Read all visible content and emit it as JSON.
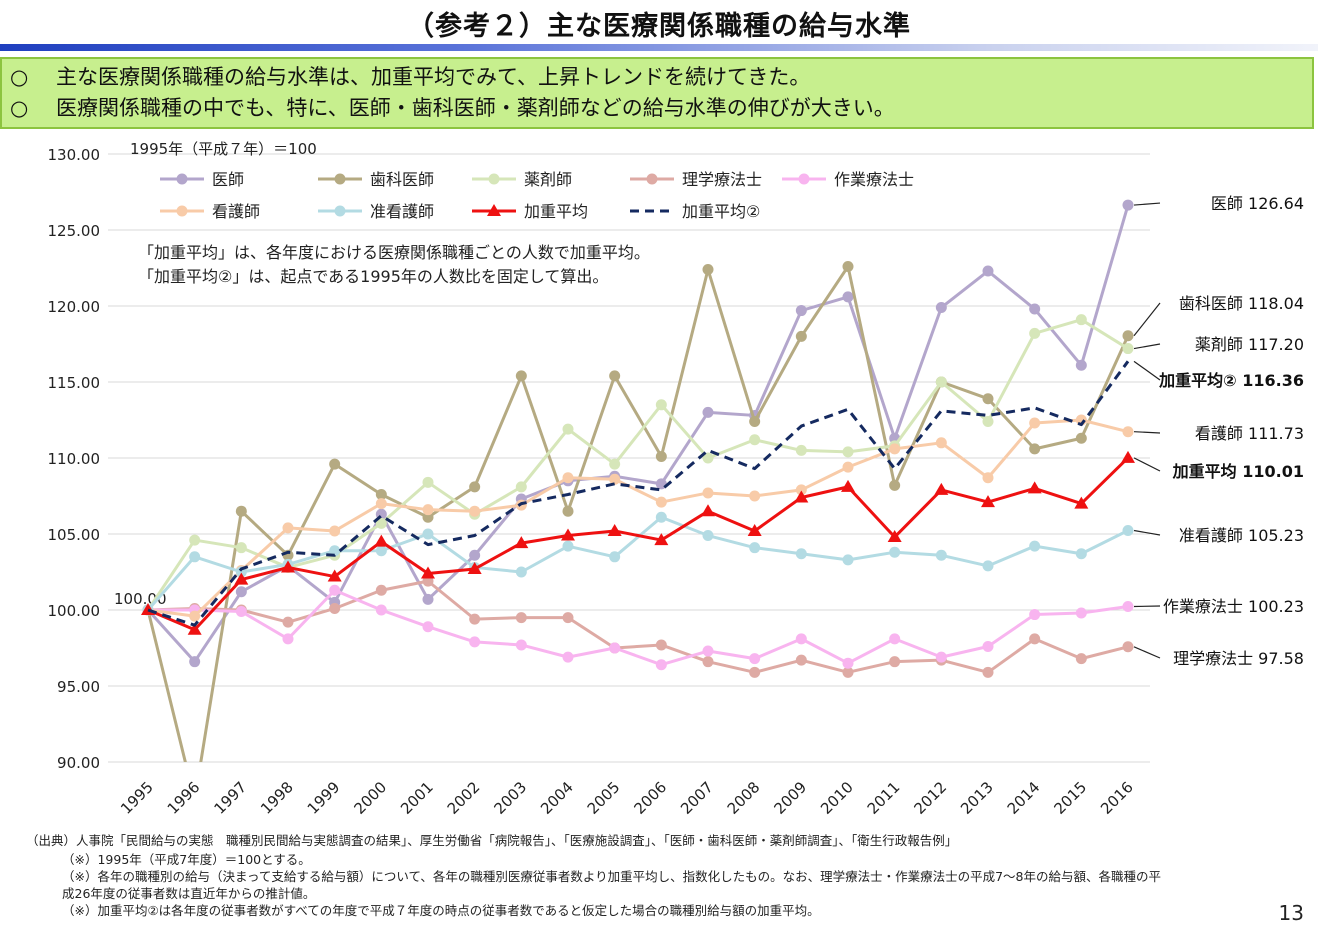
{
  "page": {
    "title": "（参考２）主な医療関係職種の給与水準",
    "page_number": "13"
  },
  "summary": {
    "bullet": "○",
    "lines": [
      "主な医療関係職種の給与水準は、加重平均でみて、上昇トレンドを続けてきた。",
      "医療関係職種の中でも、特に、医師・歯科医師・薬剤師などの給与水準の伸びが大きい。"
    ]
  },
  "chart_data": {
    "type": "line",
    "base_note": "1995年（平成７年）＝100",
    "annotation_lines": [
      "「加重平均」は、各年度における医療関係職種ごとの人数で加重平均。",
      "「加重平均②」は、起点である1995年の人数比を固定して算出。"
    ],
    "start_label": "100.00",
    "x": [
      "1995",
      "1996",
      "1997",
      "1998",
      "1999",
      "2000",
      "2001",
      "2002",
      "2003",
      "2004",
      "2005",
      "2006",
      "2007",
      "2008",
      "2009",
      "2010",
      "2011",
      "2012",
      "2013",
      "2014",
      "2015",
      "2016"
    ],
    "ylim": [
      90,
      130
    ],
    "yticks": [
      "90.00",
      "95.00",
      "100.00",
      "105.00",
      "110.00",
      "115.00",
      "120.00",
      "125.00",
      "130.00"
    ],
    "grid": true,
    "legend_position": "top-left",
    "series": [
      {
        "name": "医師",
        "color": "#b3a6cc",
        "style": "line-circle",
        "end_label": "医師 126.64",
        "bold": false,
        "values": [
          100.0,
          96.6,
          101.2,
          102.9,
          100.5,
          106.3,
          100.7,
          103.6,
          107.3,
          108.5,
          108.8,
          108.3,
          113.0,
          112.8,
          119.7,
          120.6,
          111.3,
          119.9,
          122.3,
          119.8,
          116.1,
          126.64
        ]
      },
      {
        "name": "歯科医師",
        "color": "#b5aa82",
        "style": "line-circle",
        "end_label": "歯科医師 118.04",
        "bold": false,
        "values": [
          100.0,
          87.5,
          106.5,
          103.6,
          109.6,
          107.6,
          106.1,
          108.1,
          115.4,
          106.5,
          115.4,
          110.1,
          122.4,
          112.4,
          118.0,
          122.6,
          108.2,
          115.0,
          113.9,
          110.6,
          111.3,
          118.04
        ]
      },
      {
        "name": "薬剤師",
        "color": "#d6e6b9",
        "style": "line-circle",
        "end_label": "薬剤師 117.20",
        "bold": false,
        "values": [
          100.0,
          104.6,
          104.1,
          102.8,
          103.6,
          105.7,
          108.4,
          106.3,
          108.1,
          111.9,
          109.6,
          113.5,
          110.0,
          111.2,
          110.5,
          110.4,
          110.8,
          115.0,
          112.4,
          118.2,
          119.1,
          117.2
        ]
      },
      {
        "name": "理学療法士",
        "color": "#deaaa4",
        "style": "line-circle",
        "end_label": "理学療法士 97.58",
        "bold": false,
        "values": [
          100.0,
          100.1,
          100.0,
          99.2,
          100.1,
          101.3,
          101.9,
          99.4,
          99.5,
          99.5,
          97.5,
          97.7,
          96.6,
          95.9,
          96.7,
          95.9,
          96.6,
          96.7,
          95.9,
          98.1,
          96.8,
          97.58
        ]
      },
      {
        "name": "作業療法士",
        "color": "#f8b4ef",
        "style": "line-circle",
        "end_label": "作業療法士 100.23",
        "bold": false,
        "values": [
          100.0,
          100.0,
          99.9,
          98.1,
          101.3,
          100.0,
          98.9,
          97.9,
          97.7,
          96.9,
          97.5,
          96.4,
          97.3,
          96.8,
          98.1,
          96.5,
          98.1,
          96.9,
          97.6,
          99.7,
          99.8,
          100.23
        ]
      },
      {
        "name": "看護師",
        "color": "#f8cba8",
        "style": "line-circle",
        "end_label": "看護師 111.73",
        "bold": false,
        "values": [
          100.0,
          99.6,
          102.6,
          105.4,
          105.2,
          107.0,
          106.6,
          106.5,
          106.9,
          108.7,
          108.6,
          107.1,
          107.7,
          107.5,
          107.9,
          109.4,
          110.6,
          111.0,
          108.7,
          112.3,
          112.5,
          111.73
        ]
      },
      {
        "name": "准看護師",
        "color": "#b3dbe3",
        "style": "line-circle",
        "end_label": "准看護師 105.23",
        "bold": false,
        "values": [
          100.0,
          103.5,
          102.5,
          103.0,
          103.9,
          103.9,
          105.0,
          102.8,
          102.5,
          104.2,
          103.5,
          106.1,
          104.9,
          104.1,
          103.7,
          103.3,
          103.8,
          103.6,
          102.9,
          104.2,
          103.7,
          105.23
        ]
      },
      {
        "name": "加重平均",
        "color": "#ee1111",
        "style": "line-triangle",
        "end_label": "加重平均 110.01",
        "bold": true,
        "values": [
          100.0,
          98.7,
          102.0,
          102.8,
          102.2,
          104.5,
          102.4,
          102.7,
          104.4,
          104.9,
          105.2,
          104.6,
          106.5,
          105.2,
          107.4,
          108.1,
          104.8,
          107.9,
          107.1,
          108.0,
          107.0,
          110.01
        ]
      },
      {
        "name": "加重平均②",
        "color": "#152a60",
        "style": "dashed",
        "end_label": "加重平均② 116.36",
        "bold": true,
        "values": [
          100.0,
          99.0,
          102.7,
          103.8,
          103.6,
          106.2,
          104.3,
          104.9,
          107.0,
          107.6,
          108.3,
          107.9,
          110.5,
          109.3,
          112.1,
          113.2,
          109.3,
          113.1,
          112.8,
          113.3,
          112.2,
          116.36
        ]
      }
    ]
  },
  "notes": {
    "source": "（出典）人事院「民間給与の実態　職種別民間給与実態調査の結果」、厚生労働省「病院報告」、「医療施設調査」、「医師・歯科医師・薬剤師調査」、「衛生行政報告例」",
    "items": [
      "（※）1995年（平成7年度）＝100とする。",
      "（※）各年の職種別の給与（決まって支給する給与額）について、各年の職種別医療従事者数より加重平均し、指数化したもの。なお、理学療法士・作業療法士の平成7～8年の給与額、各職種の平",
      "成26年度の従事者数は直近年からの推計値。",
      "（※）加重平均②は各年度の従事者数がすべての年度で平成７年度の時点の従事者数であると仮定した場合の職種別給与額の加重平均。"
    ]
  }
}
